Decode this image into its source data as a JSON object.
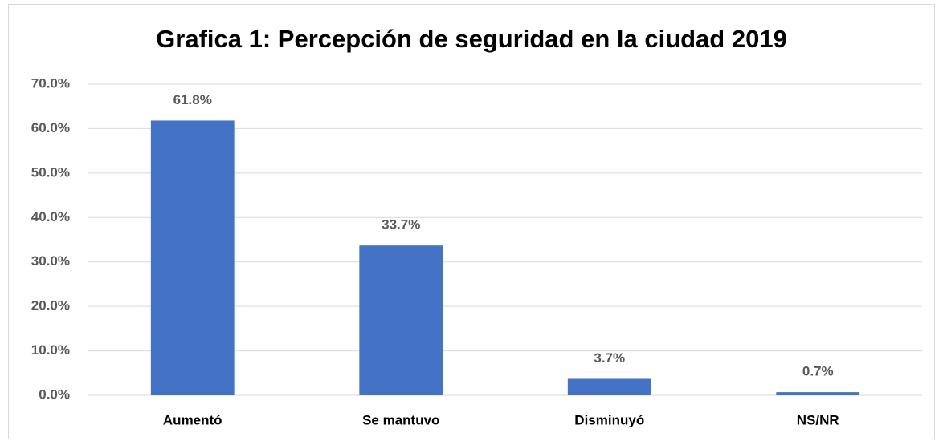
{
  "chart_data": {
    "type": "bar",
    "title": "Grafica 1: Percepción de seguridad en la ciudad 2019",
    "categories": [
      "Aumentó",
      "Se mantuvo",
      "Disminuyó",
      "NS/NR"
    ],
    "values": [
      61.8,
      33.7,
      3.7,
      0.7
    ],
    "value_labels": [
      "61.8%",
      "33.7%",
      "3.7%",
      "0.7%"
    ],
    "color": "#4472c4",
    "ylim": [
      0,
      70
    ],
    "yticks": [
      {
        "value": 0,
        "label": "0.0%"
      },
      {
        "value": 10,
        "label": "10.0%"
      },
      {
        "value": 20,
        "label": "20.0%"
      },
      {
        "value": 30,
        "label": "30.0%"
      },
      {
        "value": 40,
        "label": "40.0%"
      },
      {
        "value": 50,
        "label": "50.0%"
      },
      {
        "value": 60,
        "label": "60.0%"
      },
      {
        "value": 70,
        "label": "70.0%"
      }
    ],
    "grid": true
  }
}
